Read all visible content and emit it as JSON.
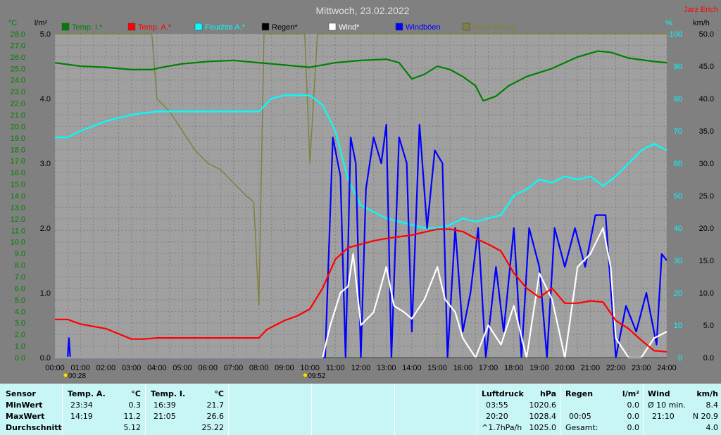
{
  "chart_data": {
    "type": "line",
    "title": "Mittwoch, 23.02.2022",
    "author": "Jarz Erich",
    "x_ticks": [
      "00:00",
      "01:00",
      "02:00",
      "03:00",
      "04:00",
      "05:00",
      "06:00",
      "07:00",
      "08:00",
      "09:00",
      "10:00",
      "11:00",
      "12:00",
      "13:00",
      "14:00",
      "15:00",
      "16:00",
      "17:00",
      "18:00",
      "19:00",
      "20:00",
      "21:00",
      "22:00",
      "23:00",
      "24:00"
    ],
    "xlim": [
      0,
      24
    ],
    "axes": {
      "temp": {
        "unit": "°C",
        "lim": [
          0,
          28
        ],
        "ticks": [
          0.0,
          1.0,
          2.0,
          3.0,
          4.0,
          5.0,
          6.0,
          7.0,
          8.0,
          9.0,
          10.0,
          11.0,
          12.0,
          13.0,
          14.0,
          15.0,
          16.0,
          17.0,
          18.0,
          19.0,
          20.0,
          21.0,
          22.0,
          23.0,
          24.0,
          25.0,
          26.0,
          27.0,
          28.0
        ]
      },
      "rain": {
        "unit": "l/m²",
        "lim": [
          0,
          5
        ],
        "ticks": [
          0.0,
          1.0,
          2.0,
          3.0,
          4.0,
          5.0
        ]
      },
      "hum": {
        "unit": "%",
        "lim": [
          0,
          100
        ],
        "ticks": [
          0,
          10,
          20,
          30,
          40,
          50,
          60,
          70,
          80,
          90,
          100
        ]
      },
      "wind": {
        "unit": "km/h",
        "lim": [
          0,
          50
        ],
        "ticks": [
          0.0,
          5.0,
          10.0,
          15.0,
          20.0,
          25.0,
          30.0,
          35.0,
          40.0,
          45.0,
          50.0
        ]
      }
    },
    "legend": [
      {
        "name": "Temp. I.*",
        "color": "#008000"
      },
      {
        "name": "Temp. A.*",
        "color": "#ff0000"
      },
      {
        "name": "Feuchte A.*",
        "color": "#00ffff"
      },
      {
        "name": "Regen*",
        "color": "#000000"
      },
      {
        "name": "Wind*",
        "color": "#ffffff"
      },
      {
        "name": "Windböen",
        "color": "#0000ff"
      },
      {
        "name": "Einstrahlung",
        "color": "#808040"
      }
    ],
    "sun_markers": [
      {
        "x": 0.47,
        "label": "00:28"
      },
      {
        "x": 9.87,
        "label": "09:52"
      }
    ],
    "series": [
      {
        "name": "Temp. I.*",
        "axis": "temp",
        "color": "#008000",
        "points": [
          [
            0,
            25.5
          ],
          [
            1,
            25.2
          ],
          [
            2,
            25.1
          ],
          [
            3,
            24.9
          ],
          [
            3.8,
            24.9
          ],
          [
            4.2,
            25.1
          ],
          [
            5,
            25.4
          ],
          [
            6,
            25.6
          ],
          [
            7,
            25.7
          ],
          [
            8,
            25.5
          ],
          [
            9,
            25.3
          ],
          [
            10,
            25.1
          ],
          [
            11,
            25.5
          ],
          [
            12,
            25.7
          ],
          [
            13,
            25.8
          ],
          [
            13.5,
            25.5
          ],
          [
            14,
            24.1
          ],
          [
            14.5,
            24.5
          ],
          [
            15,
            25.2
          ],
          [
            15.5,
            24.9
          ],
          [
            16,
            24.3
          ],
          [
            16.5,
            23.5
          ],
          [
            16.8,
            22.2
          ],
          [
            17.3,
            22.6
          ],
          [
            17.8,
            23.5
          ],
          [
            18.5,
            24.3
          ],
          [
            19.5,
            25.0
          ],
          [
            20.5,
            26.0
          ],
          [
            21.3,
            26.5
          ],
          [
            21.8,
            26.4
          ],
          [
            22.5,
            25.9
          ],
          [
            23.5,
            25.6
          ],
          [
            24,
            25.5
          ]
        ]
      },
      {
        "name": "Temp. A.*",
        "axis": "temp",
        "color": "#ff0000",
        "points": [
          [
            0,
            3.3
          ],
          [
            0.5,
            3.3
          ],
          [
            1,
            2.9
          ],
          [
            2,
            2.5
          ],
          [
            3,
            1.6
          ],
          [
            3.5,
            1.6
          ],
          [
            4,
            1.7
          ],
          [
            5,
            1.7
          ],
          [
            6,
            1.7
          ],
          [
            7,
            1.7
          ],
          [
            8,
            1.7
          ],
          [
            8.3,
            2.4
          ],
          [
            9,
            3.2
          ],
          [
            9.5,
            3.6
          ],
          [
            10,
            4.2
          ],
          [
            10.5,
            6.0
          ],
          [
            11,
            8.5
          ],
          [
            11.5,
            9.5
          ],
          [
            12,
            9.8
          ],
          [
            12.5,
            10.1
          ],
          [
            13,
            10.3
          ],
          [
            14,
            10.6
          ],
          [
            15,
            11.1
          ],
          [
            15.5,
            11.1
          ],
          [
            16,
            10.9
          ],
          [
            16.5,
            10.3
          ],
          [
            17,
            9.8
          ],
          [
            17.5,
            9.2
          ],
          [
            18,
            7.3
          ],
          [
            18.5,
            6.0
          ],
          [
            19,
            5.2
          ],
          [
            19.5,
            6.0
          ],
          [
            20,
            4.7
          ],
          [
            20.5,
            4.7
          ],
          [
            21,
            4.9
          ],
          [
            21.5,
            4.8
          ],
          [
            22,
            3.2
          ],
          [
            22.5,
            2.5
          ],
          [
            23,
            1.5
          ],
          [
            23.5,
            0.6
          ],
          [
            24,
            0.5
          ]
        ]
      },
      {
        "name": "Feuchte A.*",
        "axis": "hum",
        "color": "#00ffff",
        "points": [
          [
            0,
            68
          ],
          [
            0.5,
            68
          ],
          [
            1,
            70
          ],
          [
            2,
            73
          ],
          [
            3,
            75
          ],
          [
            4,
            76
          ],
          [
            5,
            76
          ],
          [
            6,
            76
          ],
          [
            7,
            76
          ],
          [
            8,
            76
          ],
          [
            8.5,
            80
          ],
          [
            9,
            81
          ],
          [
            10,
            81
          ],
          [
            10.5,
            78
          ],
          [
            11,
            70
          ],
          [
            11.5,
            55
          ],
          [
            12,
            47
          ],
          [
            12.5,
            45
          ],
          [
            13,
            43
          ],
          [
            13.5,
            42
          ],
          [
            14,
            41
          ],
          [
            14.5,
            40
          ],
          [
            15,
            40
          ],
          [
            15.5,
            41
          ],
          [
            16,
            43
          ],
          [
            16.5,
            42
          ],
          [
            17,
            43
          ],
          [
            17.5,
            44
          ],
          [
            18,
            50
          ],
          [
            18.5,
            52
          ],
          [
            19,
            55
          ],
          [
            19.5,
            54
          ],
          [
            20,
            56
          ],
          [
            20.5,
            55
          ],
          [
            21,
            56
          ],
          [
            21.5,
            53
          ],
          [
            22,
            56
          ],
          [
            22.5,
            60
          ],
          [
            23,
            64
          ],
          [
            23.5,
            66
          ],
          [
            24,
            64
          ]
        ]
      },
      {
        "name": "Wind*",
        "axis": "wind",
        "color": "#ffffff",
        "points": [
          [
            0,
            0
          ],
          [
            10.5,
            0
          ],
          [
            10.8,
            5
          ],
          [
            11.2,
            10
          ],
          [
            11.5,
            11
          ],
          [
            11.7,
            16
          ],
          [
            12,
            5
          ],
          [
            12.5,
            7
          ],
          [
            13,
            14
          ],
          [
            13.3,
            8
          ],
          [
            13.7,
            7
          ],
          [
            14,
            6
          ],
          [
            14.5,
            9
          ],
          [
            15,
            14
          ],
          [
            15.3,
            9
          ],
          [
            15.7,
            7
          ],
          [
            16,
            3
          ],
          [
            16.5,
            0
          ],
          [
            17,
            5
          ],
          [
            17.5,
            2
          ],
          [
            18,
            8
          ],
          [
            18.5,
            0
          ],
          [
            19,
            13
          ],
          [
            19.5,
            9
          ],
          [
            20,
            0
          ],
          [
            20.5,
            14
          ],
          [
            21,
            16
          ],
          [
            21.5,
            20
          ],
          [
            21.8,
            14
          ],
          [
            22,
            3
          ],
          [
            22.5,
            0
          ],
          [
            23,
            0
          ],
          [
            23.5,
            3
          ],
          [
            24,
            4
          ]
        ]
      },
      {
        "name": "Windböen",
        "axis": "wind",
        "color": "#0000ff",
        "points": [
          [
            0,
            0
          ],
          [
            0.5,
            0
          ],
          [
            0.55,
            3
          ],
          [
            0.6,
            0
          ],
          [
            10.6,
            0
          ],
          [
            10.9,
            34
          ],
          [
            11.2,
            28
          ],
          [
            11.4,
            0
          ],
          [
            11.6,
            34
          ],
          [
            11.8,
            30
          ],
          [
            12,
            0
          ],
          [
            12.2,
            26
          ],
          [
            12.5,
            34
          ],
          [
            12.8,
            30
          ],
          [
            13,
            36
          ],
          [
            13.2,
            0
          ],
          [
            13.5,
            34
          ],
          [
            13.8,
            30
          ],
          [
            14,
            4
          ],
          [
            14.3,
            36
          ],
          [
            14.6,
            20
          ],
          [
            14.9,
            32
          ],
          [
            15.2,
            30
          ],
          [
            15.4,
            0
          ],
          [
            15.7,
            20
          ],
          [
            16,
            4
          ],
          [
            16.3,
            10
          ],
          [
            16.6,
            20
          ],
          [
            16.9,
            0
          ],
          [
            17.3,
            14
          ],
          [
            17.6,
            4
          ],
          [
            18,
            20
          ],
          [
            18.3,
            0
          ],
          [
            18.6,
            20
          ],
          [
            19,
            14
          ],
          [
            19.3,
            0
          ],
          [
            19.6,
            20
          ],
          [
            20,
            14
          ],
          [
            20.4,
            20
          ],
          [
            20.8,
            14
          ],
          [
            21.2,
            22
          ],
          [
            21.6,
            22
          ],
          [
            22,
            0
          ],
          [
            22.4,
            8
          ],
          [
            22.8,
            4
          ],
          [
            23.2,
            10
          ],
          [
            23.6,
            2
          ],
          [
            23.8,
            16
          ],
          [
            24,
            15
          ]
        ]
      },
      {
        "name": "Einstrahlung",
        "axis": "rain",
        "color": "#808040",
        "points": [
          [
            0,
            5
          ],
          [
            3.8,
            5
          ],
          [
            4.0,
            4.0
          ],
          [
            4.5,
            3.8
          ],
          [
            5.0,
            3.5
          ],
          [
            5.5,
            3.2
          ],
          [
            6.0,
            3.0
          ],
          [
            6.5,
            2.9
          ],
          [
            7.0,
            2.7
          ],
          [
            7.5,
            2.5
          ],
          [
            7.8,
            2.4
          ],
          [
            8.0,
            0.8
          ],
          [
            8.2,
            5
          ],
          [
            9.8,
            5
          ],
          [
            10.0,
            3.0
          ],
          [
            10.3,
            5
          ],
          [
            14,
            5
          ],
          [
            16,
            5
          ],
          [
            18,
            5
          ],
          [
            20,
            5
          ],
          [
            22,
            5
          ],
          [
            24,
            5
          ]
        ]
      }
    ]
  },
  "panel": {
    "headers": {
      "sensor": "Sensor",
      "temp_a": "Temp. A.",
      "temp_a_unit": "°C",
      "temp_i": "Temp. I.",
      "temp_i_unit": "°C",
      "pressure": "Luftdruck",
      "pressure_unit": "hPa",
      "rain": "Regen",
      "rain_unit": "l/m²",
      "wind": "Wind",
      "wind_unit": "km/h"
    },
    "rows": {
      "min": "MinWert",
      "max": "MaxWert",
      "avg": "Durchschnitt"
    },
    "temp_a": {
      "min_time": "23:34",
      "min_val": "0.3",
      "max_time": "14:19",
      "max_val": "11.2",
      "avg": "5.12"
    },
    "temp_i": {
      "min_time": "16:39",
      "min_val": "21.7",
      "max_time": "21:05",
      "max_val": "26.6",
      "avg": "25.22"
    },
    "pressure": {
      "r1_time": "03:55",
      "r1_val": "1020.6",
      "r2_time": "20:20",
      "r2_val": "1028.4",
      "r3_label": "^1.7hPa/h",
      "r3_val": "1025.0"
    },
    "rain": {
      "r2_time": "00:05",
      "r1_val": "0.0",
      "r2_val": "0.0",
      "r3_label": "Gesamt:",
      "r3_val": "0.0"
    },
    "wind": {
      "r1_label": "Ø 10 min.",
      "r1_val": "8.4",
      "r2_time": "21:10",
      "r2_val": "N 20.9",
      "r3_val": "4.0"
    }
  }
}
